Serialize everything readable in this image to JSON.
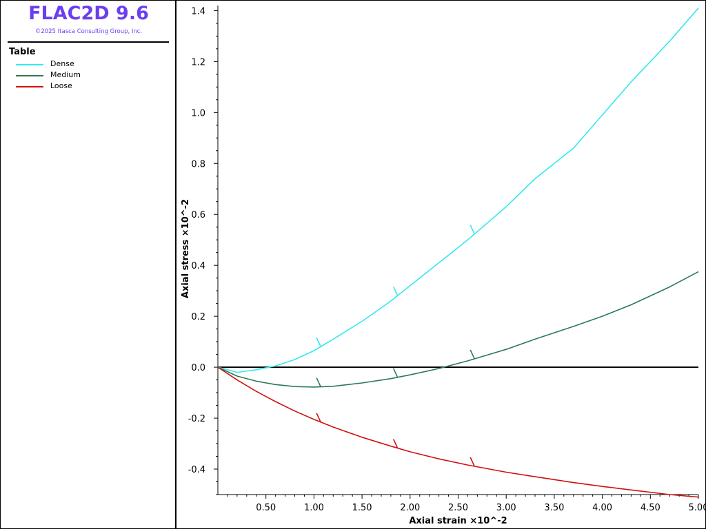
{
  "app": {
    "title": "FLAC2D 9.6",
    "copyright": "©2025 Itasca Consulting Group, Inc."
  },
  "legend": {
    "title": "Table"
  },
  "colors": {
    "Dense": "#33e8f0",
    "Medium": "#2a7a55",
    "Loose": "#d01010",
    "title": "#6a3ff0"
  },
  "chart_data": {
    "type": "line",
    "xlabel": "Axial strain ×10^-2",
    "ylabel": "Axial stress ×10^-2",
    "xlim": [
      0,
      5.0
    ],
    "ylim": [
      -0.5,
      1.42
    ],
    "xticks": [
      0.5,
      1.0,
      1.5,
      2.0,
      2.5,
      3.0,
      3.5,
      4.0,
      4.5,
      5.0
    ],
    "xtick_labels": [
      "0.50",
      "1.00",
      "1.50",
      "2.00",
      "2.50",
      "3.00",
      "3.50",
      "4.00",
      "4.50",
      "5.00"
    ],
    "yticks": [
      -0.4,
      -0.2,
      0.0,
      0.2,
      0.4,
      0.6,
      0.8,
      1.0,
      1.2,
      1.4
    ],
    "ytick_labels": [
      "-0.4",
      "-0.2",
      "0.0",
      "0.2",
      "0.4",
      "0.6",
      "0.8",
      "1.0",
      "1.2",
      "1.4"
    ],
    "zero_line": true,
    "grid": false,
    "legend_position": "left-panel",
    "series": [
      {
        "name": "Dense",
        "x": [
          0,
          0.2,
          0.4,
          0.6,
          0.8,
          1.0,
          1.2,
          1.5,
          1.8,
          2.0,
          2.3,
          2.6,
          3.0,
          3.3,
          3.7,
          4.0,
          4.3,
          4.7,
          5.0
        ],
        "y": [
          0,
          -0.02,
          -0.01,
          0.005,
          0.03,
          0.065,
          0.11,
          0.18,
          0.26,
          0.32,
          0.41,
          0.5,
          0.63,
          0.74,
          0.86,
          0.99,
          1.12,
          1.28,
          1.41
        ],
        "markers_x": [
          1.07,
          1.87,
          2.67
        ]
      },
      {
        "name": "Medium",
        "x": [
          0,
          0.2,
          0.4,
          0.6,
          0.8,
          1.0,
          1.2,
          1.5,
          1.8,
          2.0,
          2.3,
          2.6,
          3.0,
          3.3,
          3.7,
          4.0,
          4.3,
          4.7,
          5.0
        ],
        "y": [
          0,
          -0.035,
          -0.055,
          -0.068,
          -0.076,
          -0.078,
          -0.075,
          -0.062,
          -0.045,
          -0.03,
          -0.005,
          0.025,
          0.07,
          0.11,
          0.16,
          0.2,
          0.245,
          0.315,
          0.375
        ],
        "markers_x": [
          1.07,
          1.87,
          2.67
        ]
      },
      {
        "name": "Loose",
        "x": [
          0,
          0.2,
          0.4,
          0.6,
          0.8,
          1.0,
          1.2,
          1.5,
          1.8,
          2.0,
          2.3,
          2.6,
          3.0,
          3.3,
          3.7,
          4.0,
          4.3,
          4.7,
          5.0
        ],
        "y": [
          0,
          -0.05,
          -0.095,
          -0.135,
          -0.172,
          -0.205,
          -0.235,
          -0.275,
          -0.31,
          -0.332,
          -0.36,
          -0.384,
          -0.412,
          -0.43,
          -0.453,
          -0.468,
          -0.482,
          -0.5,
          -0.51
        ],
        "markers_x": [
          1.07,
          1.87,
          2.67
        ]
      }
    ]
  }
}
